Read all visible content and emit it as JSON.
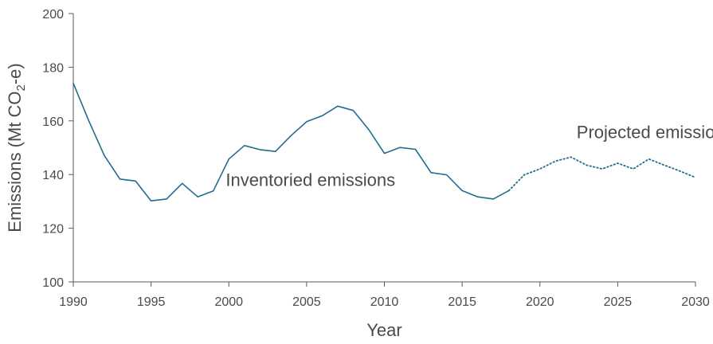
{
  "chart_data": {
    "type": "line",
    "xlabel": "Year",
    "ylabel_parts": [
      "Emissions (Mt CO",
      "2",
      "-e)"
    ],
    "xlim": [
      1990,
      2030
    ],
    "ylim": [
      100,
      200
    ],
    "x_ticks": [
      1990,
      1995,
      2000,
      2005,
      2010,
      2015,
      2020,
      2025,
      2030
    ],
    "y_ticks": [
      100,
      120,
      140,
      160,
      180,
      200
    ],
    "grid": false,
    "colors": {
      "line": "#1f6e8c",
      "axis": "#5a5a5a",
      "text": "#4a4a4a"
    },
    "series": [
      {
        "name": "Inventoried emissions",
        "style": "solid",
        "x": [
          1990,
          1991,
          1992,
          1993,
          1994,
          1995,
          1996,
          1997,
          1998,
          1999,
          2000,
          2001,
          2002,
          2003,
          2004,
          2005,
          2006,
          2007,
          2008,
          2009,
          2010,
          2011,
          2012,
          2013,
          2014,
          2015,
          2016,
          2017,
          2018
        ],
        "y": [
          174,
          160,
          147,
          138.3,
          137.6,
          130.2,
          130.9,
          136.7,
          131.7,
          133.9,
          145.8,
          150.8,
          149.3,
          148.6,
          154.5,
          159.7,
          161.9,
          165.5,
          163.9,
          156.7,
          147.9,
          150.1,
          149.4,
          140.7,
          139.9,
          134,
          131.7,
          130.9,
          134
        ]
      },
      {
        "name": "Projected emissions",
        "style": "dotted",
        "x": [
          2018,
          2019,
          2020,
          2021,
          2022,
          2023,
          2024,
          2025,
          2026,
          2027,
          2028,
          2029,
          2030
        ],
        "y": [
          134,
          139.9,
          142.1,
          145,
          146.5,
          143.5,
          142.1,
          144.2,
          142.1,
          145.8,
          143.5,
          141.3,
          138.9
        ]
      }
    ]
  }
}
